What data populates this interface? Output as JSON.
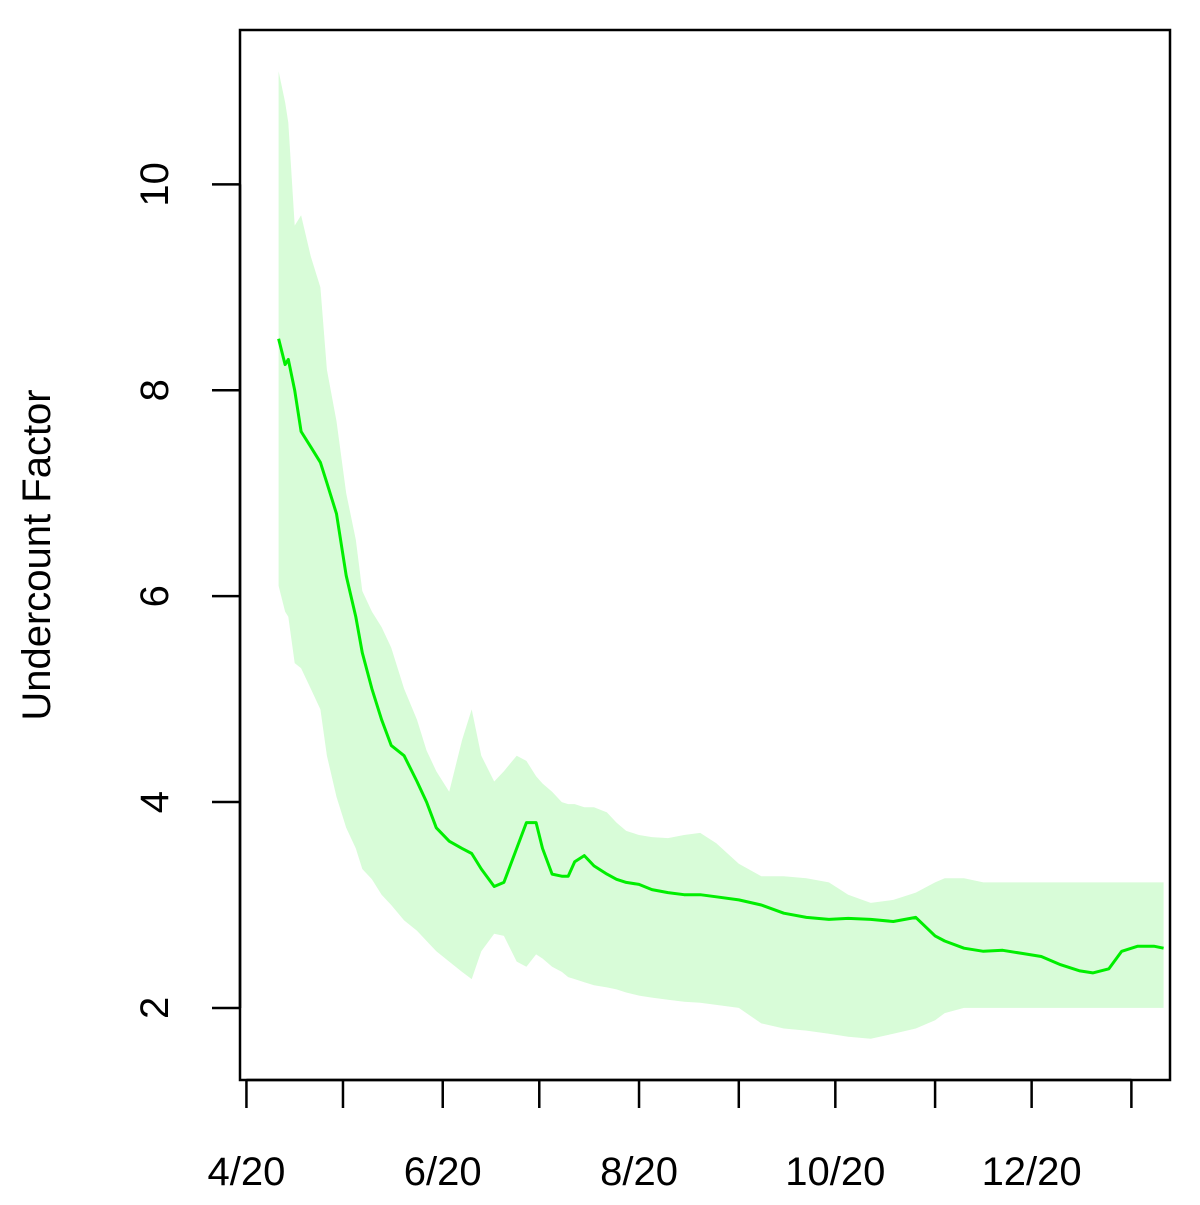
{
  "chart_data": {
    "type": "line",
    "title": "",
    "xlabel": "",
    "ylabel": "Undercount Factor",
    "x_tick_positions": [
      "4/1/2020",
      "5/1/2020",
      "6/1/2020",
      "7/1/2020",
      "8/1/2020",
      "9/1/2020",
      "10/1/2020",
      "11/1/2020",
      "12/1/2020",
      "1/1/2021"
    ],
    "x_tick_labels": [
      "4/20",
      "6/20",
      "8/20",
      "10/20",
      "12/20"
    ],
    "x_tick_labeled_positions": [
      "4/1/2020",
      "6/1/2020",
      "8/1/2020",
      "10/1/2020",
      "12/1/2020"
    ],
    "y_ticks": [
      2,
      4,
      6,
      8,
      10
    ],
    "xlim": [
      "3/30/2020",
      "1/13/2021"
    ],
    "ylim": [
      1.3,
      11.5
    ],
    "grid": false,
    "colors": {
      "line": "#00ee00",
      "band": "#d8fcd8",
      "axis": "#000000"
    },
    "series": [
      {
        "x": [
          "4/11/2020",
          "4/13/2020",
          "4/14/2020",
          "4/16/2020",
          "4/18/2020",
          "4/21/2020",
          "4/24/2020",
          "4/26/2020",
          "4/29/2020",
          "5/2/2020",
          "5/5/2020",
          "5/7/2020",
          "5/10/2020",
          "5/13/2020",
          "5/16/2020",
          "5/20/2020",
          "5/24/2020",
          "5/27/2020",
          "5/30/2020",
          "6/3/2020",
          "6/7/2020",
          "6/10/2020",
          "6/13/2020",
          "6/17/2020",
          "6/20/2020",
          "6/24/2020",
          "6/27/2020",
          "6/30/2020",
          "7/2/2020",
          "7/5/2020",
          "7/8/2020",
          "7/10/2020",
          "7/12/2020",
          "7/15/2020",
          "7/18/2020",
          "7/22/2020",
          "7/25/2020",
          "7/28/2020",
          "8/1/2020",
          "8/5/2020",
          "8/10/2020",
          "8/15/2020",
          "8/20/2020",
          "8/25/2020",
          "9/1/2020",
          "9/8/2020",
          "9/15/2020",
          "9/22/2020",
          "9/29/2020",
          "10/5/2020",
          "10/12/2020",
          "10/19/2020",
          "10/26/2020",
          "11/1/2020",
          "11/4/2020",
          "11/10/2020",
          "11/16/2020",
          "11/22/2020",
          "11/28/2020",
          "12/4/2020",
          "12/10/2020",
          "12/16/2020",
          "12/20/2020",
          "12/25/2020",
          "12/29/2020",
          "1/3/2021",
          "1/8/2021",
          "1/11/2021"
        ],
        "y": [
          8.5,
          8.25,
          8.3,
          8.0,
          7.6,
          7.45,
          7.3,
          7.1,
          6.8,
          6.2,
          5.8,
          5.45,
          5.1,
          4.8,
          4.55,
          4.45,
          4.2,
          4.0,
          3.75,
          3.62,
          3.55,
          3.5,
          3.35,
          3.18,
          3.22,
          3.55,
          3.8,
          3.8,
          3.55,
          3.3,
          3.28,
          3.28,
          3.42,
          3.48,
          3.38,
          3.3,
          3.25,
          3.22,
          3.2,
          3.15,
          3.12,
          3.1,
          3.1,
          3.08,
          3.05,
          3.0,
          2.92,
          2.88,
          2.86,
          2.87,
          2.86,
          2.84,
          2.88,
          2.7,
          2.65,
          2.58,
          2.55,
          2.56,
          2.53,
          2.5,
          2.42,
          2.36,
          2.34,
          2.38,
          2.55,
          2.6,
          2.6,
          2.58
        ],
        "lower": [
          6.1,
          5.85,
          5.8,
          5.35,
          5.3,
          5.1,
          4.9,
          4.45,
          4.05,
          3.75,
          3.55,
          3.35,
          3.25,
          3.1,
          3.0,
          2.85,
          2.75,
          2.65,
          2.55,
          2.45,
          2.35,
          2.28,
          2.55,
          2.72,
          2.7,
          2.45,
          2.4,
          2.52,
          2.48,
          2.4,
          2.35,
          2.3,
          2.28,
          2.25,
          2.22,
          2.2,
          2.18,
          2.15,
          2.12,
          2.1,
          2.08,
          2.06,
          2.05,
          2.03,
          2.0,
          1.85,
          1.8,
          1.78,
          1.75,
          1.72,
          1.7,
          1.75,
          1.8,
          1.88,
          1.95,
          2.0,
          2.0,
          2.0,
          2.0,
          2.0,
          2.0,
          2.0,
          2.0,
          2.0,
          2.0,
          2.0,
          2.0,
          2.0
        ],
        "upper": [
          11.1,
          10.8,
          10.6,
          9.6,
          9.7,
          9.3,
          9.0,
          8.2,
          7.7,
          7.0,
          6.55,
          6.05,
          5.85,
          5.7,
          5.5,
          5.1,
          4.8,
          4.5,
          4.3,
          4.1,
          4.6,
          4.9,
          4.45,
          4.2,
          4.3,
          4.45,
          4.4,
          4.25,
          4.18,
          4.1,
          4.0,
          3.98,
          3.98,
          3.95,
          3.95,
          3.9,
          3.8,
          3.72,
          3.68,
          3.66,
          3.65,
          3.68,
          3.7,
          3.6,
          3.4,
          3.28,
          3.28,
          3.26,
          3.22,
          3.1,
          3.02,
          3.05,
          3.12,
          3.22,
          3.26,
          3.26,
          3.22,
          3.22,
          3.22,
          3.22,
          3.22,
          3.22,
          3.22,
          3.22,
          3.22,
          3.22,
          3.22,
          3.22
        ]
      }
    ]
  }
}
